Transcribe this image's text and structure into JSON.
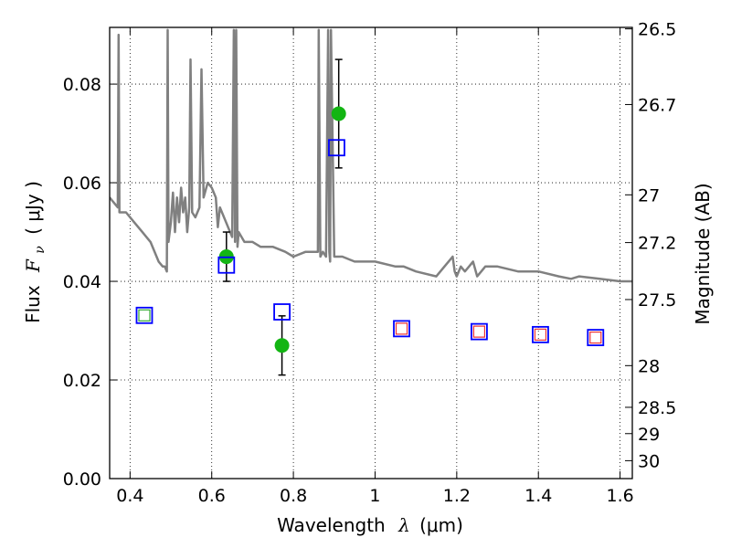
{
  "chart_data": {
    "type": "scatter",
    "xlabel_text": "Wavelength",
    "xlabel_symbol": "λ",
    "xlabel_unit": "(μm)",
    "ylabel_text": "Flux",
    "ylabel_symbol": "F",
    "ylabel_sub": "ν",
    "ylabel_unit": "( μJy )",
    "y2label": "Magnitude (AB)",
    "xlim": [
      0.35,
      1.63
    ],
    "ylim": [
      0.0,
      0.0915
    ],
    "grid": true,
    "xticks": [
      {
        "value": 0.4,
        "label": "0.4"
      },
      {
        "value": 0.6,
        "label": "0.6"
      },
      {
        "value": 0.8,
        "label": "0.8"
      },
      {
        "value": 1.0,
        "label": "1"
      },
      {
        "value": 1.2,
        "label": "1.2"
      },
      {
        "value": 1.4,
        "label": "1.4"
      },
      {
        "value": 1.6,
        "label": "1.6"
      }
    ],
    "yticks": [
      {
        "value": 0.0,
        "label": "0.00"
      },
      {
        "value": 0.02,
        "label": "0.02"
      },
      {
        "value": 0.04,
        "label": "0.04"
      },
      {
        "value": 0.06,
        "label": "0.06"
      },
      {
        "value": 0.08,
        "label": "0.08"
      }
    ],
    "y2ticks": [
      {
        "value": 26.5,
        "label": "26.5"
      },
      {
        "value": 26.7,
        "label": "26.7"
      },
      {
        "value": 27.0,
        "label": "27"
      },
      {
        "value": 27.2,
        "label": "27.2"
      },
      {
        "value": 27.5,
        "label": "27.5"
      },
      {
        "value": 28.0,
        "label": "28"
      },
      {
        "value": 28.5,
        "label": "28.5"
      },
      {
        "value": 29.0,
        "label": "29"
      },
      {
        "value": 30.0,
        "label": "30"
      }
    ],
    "series": [
      {
        "kind": "line",
        "color": "#808080",
        "x": [
          0.35,
          0.37,
          0.372,
          0.374,
          0.39,
          0.41,
          0.43,
          0.45,
          0.47,
          0.48,
          0.485,
          0.49,
          0.492,
          0.494,
          0.5,
          0.505,
          0.51,
          0.515,
          0.52,
          0.525,
          0.53,
          0.535,
          0.54,
          0.545,
          0.548,
          0.552,
          0.56,
          0.57,
          0.575,
          0.58,
          0.59,
          0.6,
          0.61,
          0.615,
          0.62,
          0.64,
          0.65,
          0.654,
          0.657,
          0.66,
          0.663,
          0.666,
          0.68,
          0.7,
          0.72,
          0.75,
          0.78,
          0.8,
          0.83,
          0.86,
          0.862,
          0.866,
          0.872,
          0.88,
          0.885,
          0.888,
          0.89,
          0.892,
          0.9,
          0.92,
          0.95,
          1.0,
          1.05,
          1.07,
          1.1,
          1.15,
          1.17,
          1.18,
          1.19,
          1.195,
          1.2,
          1.21,
          1.22,
          1.23,
          1.24,
          1.25,
          1.26,
          1.27,
          1.3,
          1.35,
          1.4,
          1.45,
          1.48,
          1.5,
          1.55,
          1.6,
          1.63
        ],
        "y": [
          0.057,
          0.055,
          0.09,
          0.054,
          0.054,
          0.052,
          0.05,
          0.048,
          0.044,
          0.043,
          0.043,
          0.042,
          0.091,
          0.048,
          0.052,
          0.058,
          0.05,
          0.057,
          0.052,
          0.059,
          0.054,
          0.057,
          0.05,
          0.055,
          0.085,
          0.054,
          0.053,
          0.055,
          0.083,
          0.057,
          0.06,
          0.059,
          0.057,
          0.051,
          0.055,
          0.051,
          0.049,
          0.091,
          0.048,
          0.091,
          0.047,
          0.05,
          0.048,
          0.048,
          0.047,
          0.047,
          0.046,
          0.045,
          0.046,
          0.046,
          0.091,
          0.045,
          0.046,
          0.045,
          0.091,
          0.046,
          0.044,
          0.091,
          0.045,
          0.045,
          0.044,
          0.044,
          0.043,
          0.043,
          0.042,
          0.041,
          0.043,
          0.044,
          0.045,
          0.042,
          0.041,
          0.043,
          0.042,
          0.043,
          0.044,
          0.041,
          0.042,
          0.043,
          0.043,
          0.042,
          0.042,
          0.041,
          0.0405,
          0.041,
          0.0405,
          0.04,
          0.04
        ]
      },
      {
        "kind": "scatter",
        "marker": "circle",
        "color": "#13b513",
        "points": [
          {
            "x": 0.636,
            "y": 0.045,
            "yerr": 0.005
          },
          {
            "x": 0.772,
            "y": 0.027,
            "yerr": 0.006
          },
          {
            "x": 0.911,
            "y": 0.074,
            "yerr": 0.011
          }
        ]
      },
      {
        "kind": "scatter",
        "marker": "square",
        "color": "#0000ff",
        "points": [
          {
            "x": 0.435,
            "y": 0.0331
          },
          {
            "x": 0.636,
            "y": 0.0433
          },
          {
            "x": 0.772,
            "y": 0.0338
          },
          {
            "x": 0.906,
            "y": 0.0671
          },
          {
            "x": 1.065,
            "y": 0.0304
          },
          {
            "x": 1.255,
            "y": 0.0298
          },
          {
            "x": 1.405,
            "y": 0.0292
          },
          {
            "x": 1.54,
            "y": 0.0286
          }
        ]
      },
      {
        "kind": "scatter",
        "marker": "square-small",
        "color": "#ee3333",
        "points": [
          {
            "x": 1.065,
            "y": 0.0304
          },
          {
            "x": 1.255,
            "y": 0.0298
          },
          {
            "x": 1.405,
            "y": 0.0292
          },
          {
            "x": 1.54,
            "y": 0.0286
          }
        ]
      },
      {
        "kind": "scatter",
        "marker": "square-small",
        "color": "#33aa33",
        "points": [
          {
            "x": 0.435,
            "y": 0.0331
          }
        ]
      }
    ]
  }
}
